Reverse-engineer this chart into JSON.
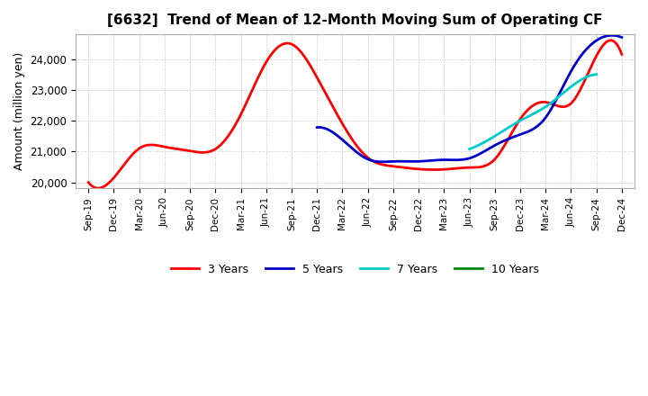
{
  "title": "[6632]  Trend of Mean of 12-Month Moving Sum of Operating CF",
  "ylabel": "Amount (million yen)",
  "background_color": "#ffffff",
  "grid_color": "#aaaaaa",
  "ylim": [
    19800,
    24800
  ],
  "yticks": [
    20000,
    21000,
    22000,
    23000,
    24000
  ],
  "legend_labels": [
    "3 Years",
    "5 Years",
    "7 Years",
    "10 Years"
  ],
  "legend_colors": [
    "#ff0000",
    "#0000cc",
    "#00cccc",
    "#008800"
  ],
  "x_labels": [
    "Sep-19",
    "Dec-19",
    "Mar-20",
    "Jun-20",
    "Sep-20",
    "Dec-20",
    "Mar-21",
    "Jun-21",
    "Sep-21",
    "Dec-21",
    "Mar-22",
    "Jun-22",
    "Sep-22",
    "Dec-22",
    "Mar-23",
    "Jun-23",
    "Sep-23",
    "Dec-23",
    "Mar-24",
    "Jun-24",
    "Sep-24",
    "Dec-24"
  ],
  "series_3y_x": [
    0,
    1,
    2,
    3,
    4,
    5,
    6,
    7,
    8,
    9,
    10,
    11,
    12,
    13,
    14,
    15,
    16,
    17,
    18,
    19,
    20,
    21
  ],
  "series_3y_y": [
    20000,
    20150,
    21100,
    21150,
    21020,
    21080,
    22200,
    23900,
    24480,
    23400,
    21900,
    20800,
    20520,
    20430,
    20420,
    20480,
    20750,
    22050,
    22600,
    22560,
    24100,
    24150
  ],
  "series_5y_x": [
    9,
    10,
    11,
    12,
    13,
    14,
    15,
    16,
    17,
    18,
    19,
    20,
    21
  ],
  "series_5y_y": [
    21780,
    21380,
    20750,
    20680,
    20680,
    20730,
    20780,
    21200,
    21550,
    22100,
    23600,
    24600,
    24700
  ],
  "series_7y_x": [
    15,
    16,
    17,
    18,
    19,
    20
  ],
  "series_7y_y": [
    21080,
    21500,
    22000,
    22450,
    23100,
    23500
  ],
  "series_10y_x": [],
  "series_10y_y": []
}
